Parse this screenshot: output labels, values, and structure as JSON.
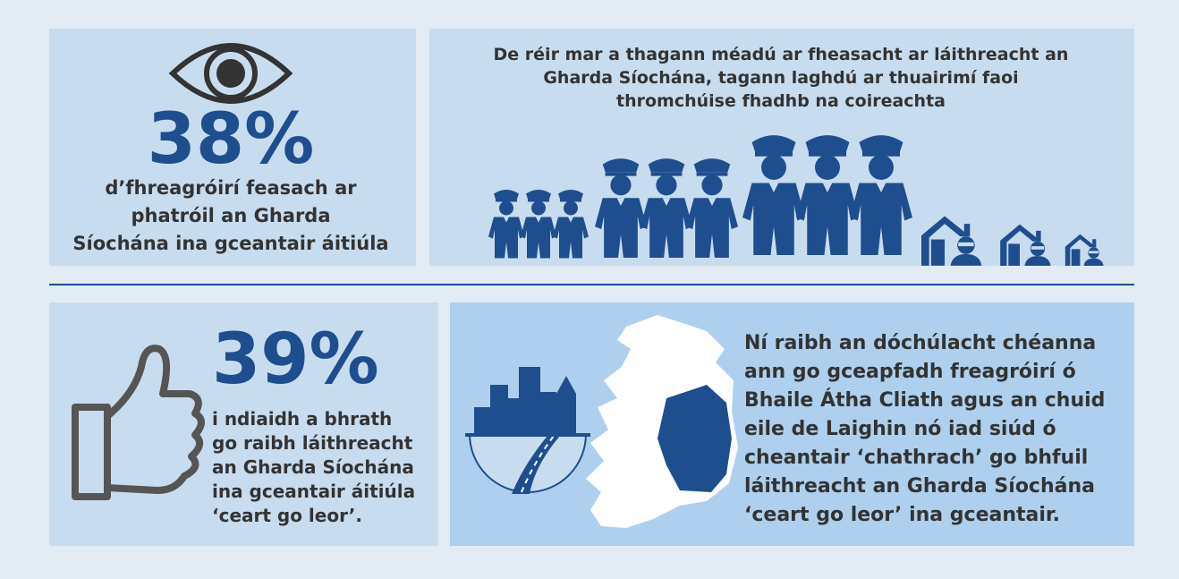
{
  "top_left": {
    "stat": "38%",
    "text_lines": [
      "d’fhreagróirí feasach ar",
      "phatróil an Gharda",
      "Síochána ina gceantair áitiúla"
    ]
  },
  "top_right": {
    "title_lines": [
      "De réir mar a thagann méadú ar fheasacht ar láithreacht an",
      "Gharda Síochána, tagann laghdú ar thuairimí faoi",
      "thromchúise fhadhb na coireachta"
    ]
  },
  "bottom_left": {
    "stat": "39%",
    "text_lines": [
      "i ndiaidh a bhrath",
      "go raibh láithreacht",
      "an Gharda Síochána",
      "ina gceantair áitiúla",
      "‘ceart go leor’."
    ]
  },
  "bottom_right": {
    "text_lines": [
      "Ní raibh an dóchúlacht chéanna",
      "ann go gceapfadh freagróirí ó",
      "Bhaile Átha Cliath agus an chuid",
      "eile de Laighin nó iad siúd ó",
      "cheantair ‘chathrach’ go bhfuil",
      "láithreacht an Gharda Síochána",
      "‘ceart go leor’ ina gceantair."
    ]
  }
}
